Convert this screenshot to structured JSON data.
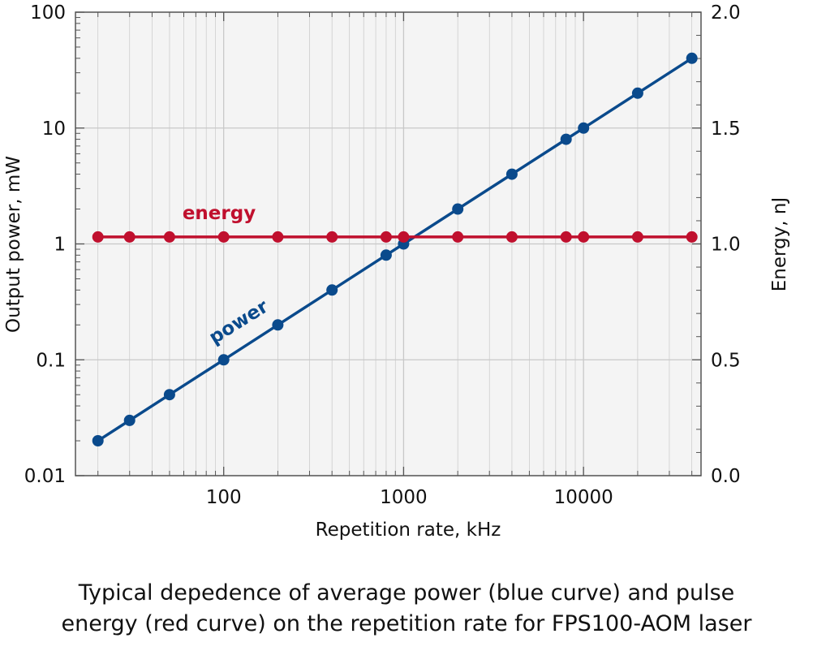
{
  "caption": {
    "line1": "Typical depedence of average power (blue curve) and pulse",
    "line2": "energy (red curve) on the repetition rate for FPS100-AOM laser"
  },
  "chart_data": {
    "type": "line",
    "title": "",
    "xlabel": "Repetition rate, kHz",
    "ylabel": "Output power, mW",
    "y2label": "Energy, nJ",
    "xscale": "log",
    "yscale": "log",
    "y2scale": "linear",
    "xlim": [
      15,
      45000
    ],
    "ylim": [
      0.01,
      100
    ],
    "y2lim": [
      0.0,
      2.0
    ],
    "x_ticks": [
      "100",
      "1000",
      "10000"
    ],
    "y_ticks": [
      "0.01",
      "0.1",
      "1",
      "10",
      "100"
    ],
    "y2_ticks": [
      "0.0",
      "0.5",
      "1.0",
      "1.5",
      "2.0"
    ],
    "grid": true,
    "colors": {
      "plot_background": "#f4f4f4",
      "grid": "#c8c8c8",
      "power": "#0a4a8c",
      "energy": "#c0102e"
    },
    "series": [
      {
        "name": "power",
        "axis": "left",
        "x": [
          20,
          30,
          50,
          100,
          200,
          400,
          800,
          1000,
          2000,
          4000,
          8000,
          10000,
          20000,
          40000
        ],
        "y": [
          0.02,
          0.03,
          0.05,
          0.1,
          0.2,
          0.4,
          0.8,
          1.0,
          2.0,
          4.0,
          8.0,
          10.0,
          20.0,
          40.0
        ]
      },
      {
        "name": "energy",
        "axis": "right",
        "x": [
          20,
          30,
          50,
          100,
          200,
          400,
          800,
          1000,
          2000,
          4000,
          8000,
          10000,
          20000,
          40000
        ],
        "y": [
          1.03,
          1.03,
          1.03,
          1.03,
          1.03,
          1.03,
          1.03,
          1.03,
          1.03,
          1.03,
          1.03,
          1.03,
          1.03,
          1.03
        ]
      }
    ]
  }
}
